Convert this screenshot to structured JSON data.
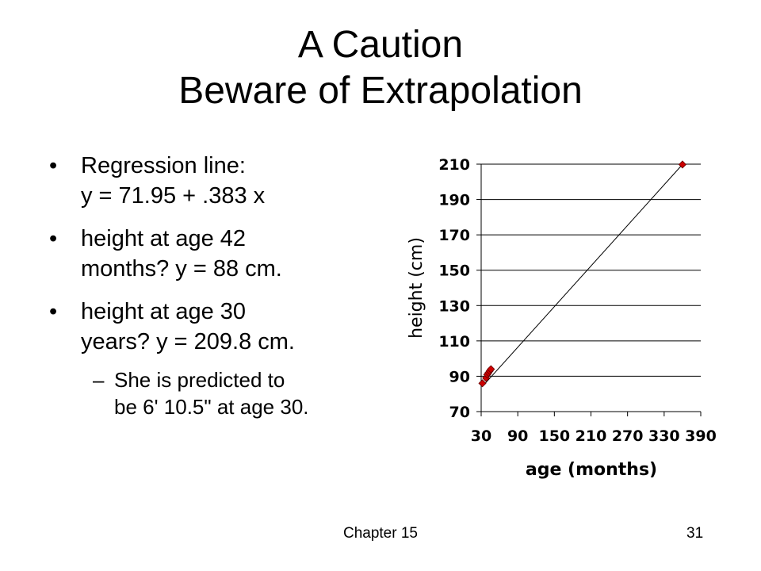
{
  "slide": {
    "title_line1": "A Caution",
    "title_line2": "Beware of Extrapolation",
    "bullets": [
      {
        "line1": "Regression line:",
        "line2": "y = 71.95 + .383 x"
      },
      {
        "line1": "height at age 42",
        "line2": "months?   y = 88 cm."
      },
      {
        "line1": "height at age 30",
        "line2": "years?   y = 209.8 cm."
      }
    ],
    "sub_bullet": {
      "line1": "She is predicted to",
      "line2": "be 6' 10.5\" at age 30."
    },
    "bullet_glyph": "•",
    "dash_glyph": "–",
    "footer_left": "Chapter 15",
    "footer_right": "31"
  },
  "chart_data": {
    "type": "scatter",
    "xlabel": "age (months)",
    "ylabel": "height (cm)",
    "xlim": [
      30,
      390
    ],
    "ylim": [
      70,
      210
    ],
    "xticks": [
      30,
      90,
      150,
      210,
      270,
      330,
      390
    ],
    "yticks": [
      70,
      90,
      110,
      130,
      150,
      170,
      190,
      210
    ],
    "grid": "horizontal",
    "points": [
      {
        "x": 32,
        "y": 86
      },
      {
        "x": 38,
        "y": 89
      },
      {
        "x": 40,
        "y": 91
      },
      {
        "x": 42,
        "y": 92
      },
      {
        "x": 44,
        "y": 93
      },
      {
        "x": 46,
        "y": 94
      },
      {
        "x": 360,
        "y": 209.8
      }
    ],
    "regression_line": {
      "intercept": 71.95,
      "slope": 0.383,
      "x_from": 32,
      "x_to": 360
    },
    "marker_color": "#cc0000",
    "line_color": "#000000"
  }
}
